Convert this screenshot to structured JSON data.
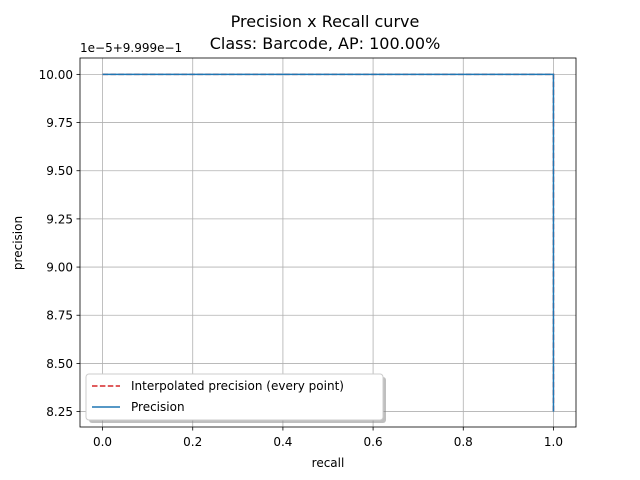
{
  "chart_data": {
    "type": "line",
    "title": "Precision x Recall curve",
    "subtitle": "Class: Barcode, AP: 100.00%",
    "xlabel": "recall",
    "ylabel": "precision",
    "y_offset_label": "1e−5+9.999e−1",
    "xlim": [
      -0.05,
      1.05
    ],
    "ylim": [
      8.17,
      10.085
    ],
    "x_ticks": [
      0.0,
      0.2,
      0.4,
      0.6,
      0.8,
      1.0
    ],
    "x_tick_labels": [
      "0.0",
      "0.2",
      "0.4",
      "0.6",
      "0.8",
      "1.0"
    ],
    "y_ticks": [
      8.25,
      8.5,
      8.75,
      9.0,
      9.25,
      9.5,
      9.75,
      10.0
    ],
    "y_tick_labels": [
      "8.25",
      "8.50",
      "8.75",
      "9.00",
      "9.25",
      "9.50",
      "9.75",
      "10.00"
    ],
    "grid": true,
    "legend_position": "lower-left",
    "series": [
      {
        "name": "Interpolated precision (every point)",
        "color": "#d62728",
        "style": "dashed",
        "x": [
          0.0,
          1.0,
          1.0
        ],
        "y": [
          10.0,
          10.0,
          8.25
        ]
      },
      {
        "name": "Precision",
        "color": "#1f77b4",
        "style": "solid",
        "x": [
          0.0,
          1.0,
          1.0
        ],
        "y": [
          10.0,
          10.0,
          8.25
        ]
      }
    ]
  }
}
